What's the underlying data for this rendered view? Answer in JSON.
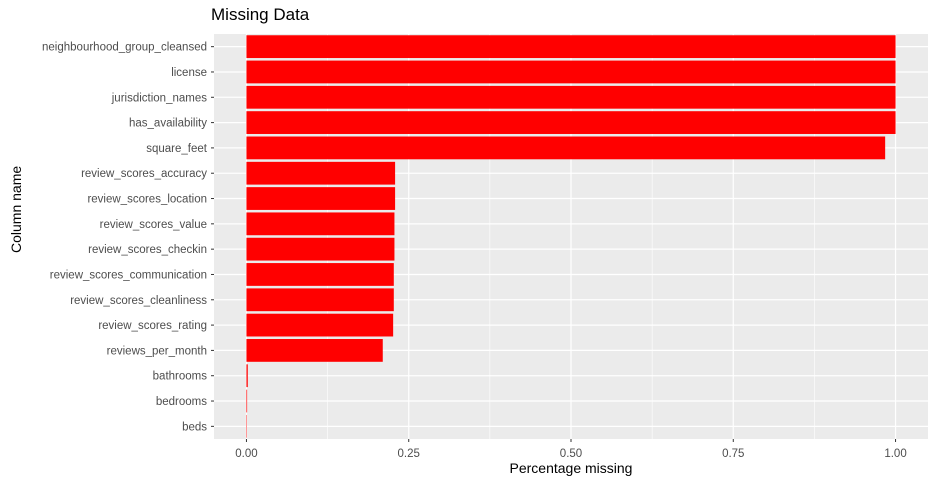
{
  "chart_data": {
    "type": "bar",
    "orientation": "horizontal",
    "title": "Missing Data",
    "xlabel": "Percentage missing",
    "ylabel": "Column name",
    "xlim": [
      -0.05,
      1.05
    ],
    "xticks": [
      "0.00",
      "0.25",
      "0.50",
      "0.75",
      "1.00"
    ],
    "xtick_values": [
      0,
      0.25,
      0.5,
      0.75,
      1.0
    ],
    "grid": true,
    "bar_color": "#FF0000",
    "panel_color": "#EBEBEB",
    "categories": [
      "neighbourhood_group_cleansed",
      "license",
      "jurisdiction_names",
      "has_availability",
      "square_feet",
      "review_scores_accuracy",
      "review_scores_location",
      "review_scores_value",
      "review_scores_checkin",
      "review_scores_communication",
      "review_scores_cleanliness",
      "review_scores_rating",
      "reviews_per_month",
      "bathrooms",
      "bedrooms",
      "beds"
    ],
    "values": [
      1.0,
      1.0,
      1.0,
      1.0,
      0.984,
      0.229,
      0.229,
      0.228,
      0.228,
      0.227,
      0.227,
      0.226,
      0.21,
      0.002,
      0.001,
      0.0005
    ]
  }
}
